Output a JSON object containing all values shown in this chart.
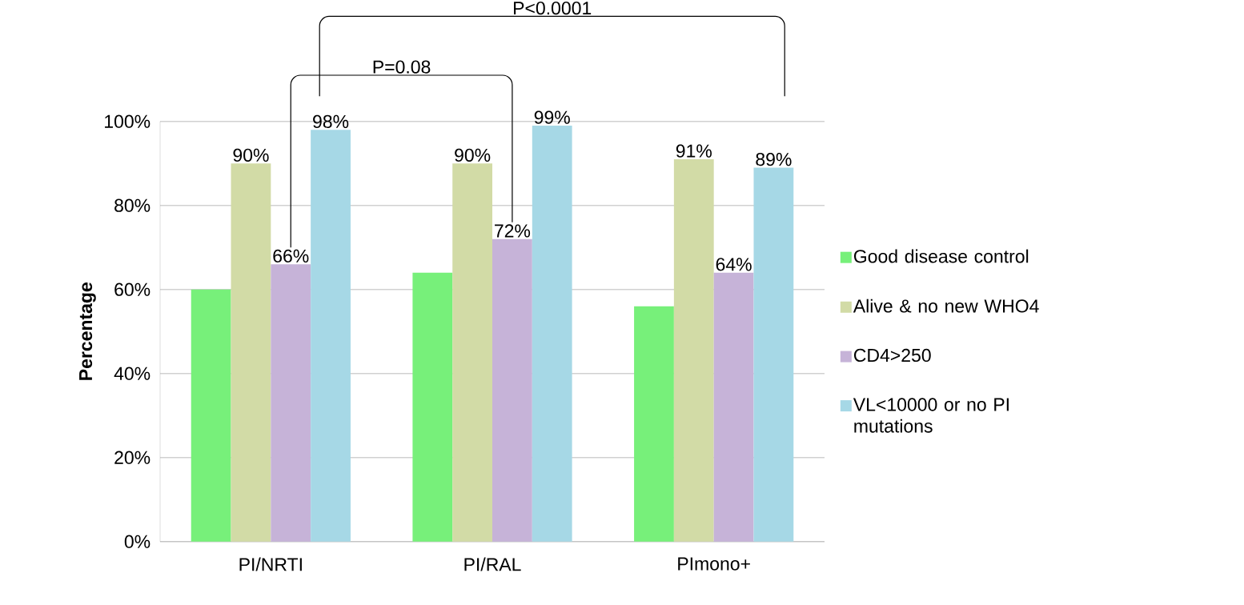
{
  "chart_data": {
    "type": "bar",
    "ylabel": "Percentage",
    "categories": [
      "PI/NRTI",
      "PI/RAL",
      "PImono+"
    ],
    "series": [
      {
        "name": "Good disease control",
        "color": "#77f07a",
        "values": [
          60,
          64,
          56
        ]
      },
      {
        "name": "Alive & no new WHO4",
        "color": "#d2dba6",
        "values": [
          90,
          90,
          91
        ],
        "value_labels": [
          "90%",
          "90%",
          "91%"
        ]
      },
      {
        "name": "CD4>250",
        "color": "#c6b3d8",
        "values": [
          66,
          72,
          64
        ],
        "value_labels": [
          "66%",
          "72%",
          "64%"
        ]
      },
      {
        "name": "VL<10000 or no PI mutations",
        "color": "#a6d8e6",
        "values": [
          98,
          99,
          89
        ],
        "value_labels": [
          "98%",
          "99%",
          "89%"
        ]
      }
    ],
    "ylim": [
      0,
      100
    ],
    "yticks": [
      {
        "value": 0,
        "label": "0%"
      },
      {
        "value": 20,
        "label": "20%"
      },
      {
        "value": 40,
        "label": "40%"
      },
      {
        "value": 60,
        "label": "60%"
      },
      {
        "value": 80,
        "label": "80%"
      },
      {
        "value": 100,
        "label": "100%"
      }
    ],
    "grid": "y",
    "legend": "right",
    "annotations": [
      "P=0.08",
      "P<0.0001"
    ]
  }
}
